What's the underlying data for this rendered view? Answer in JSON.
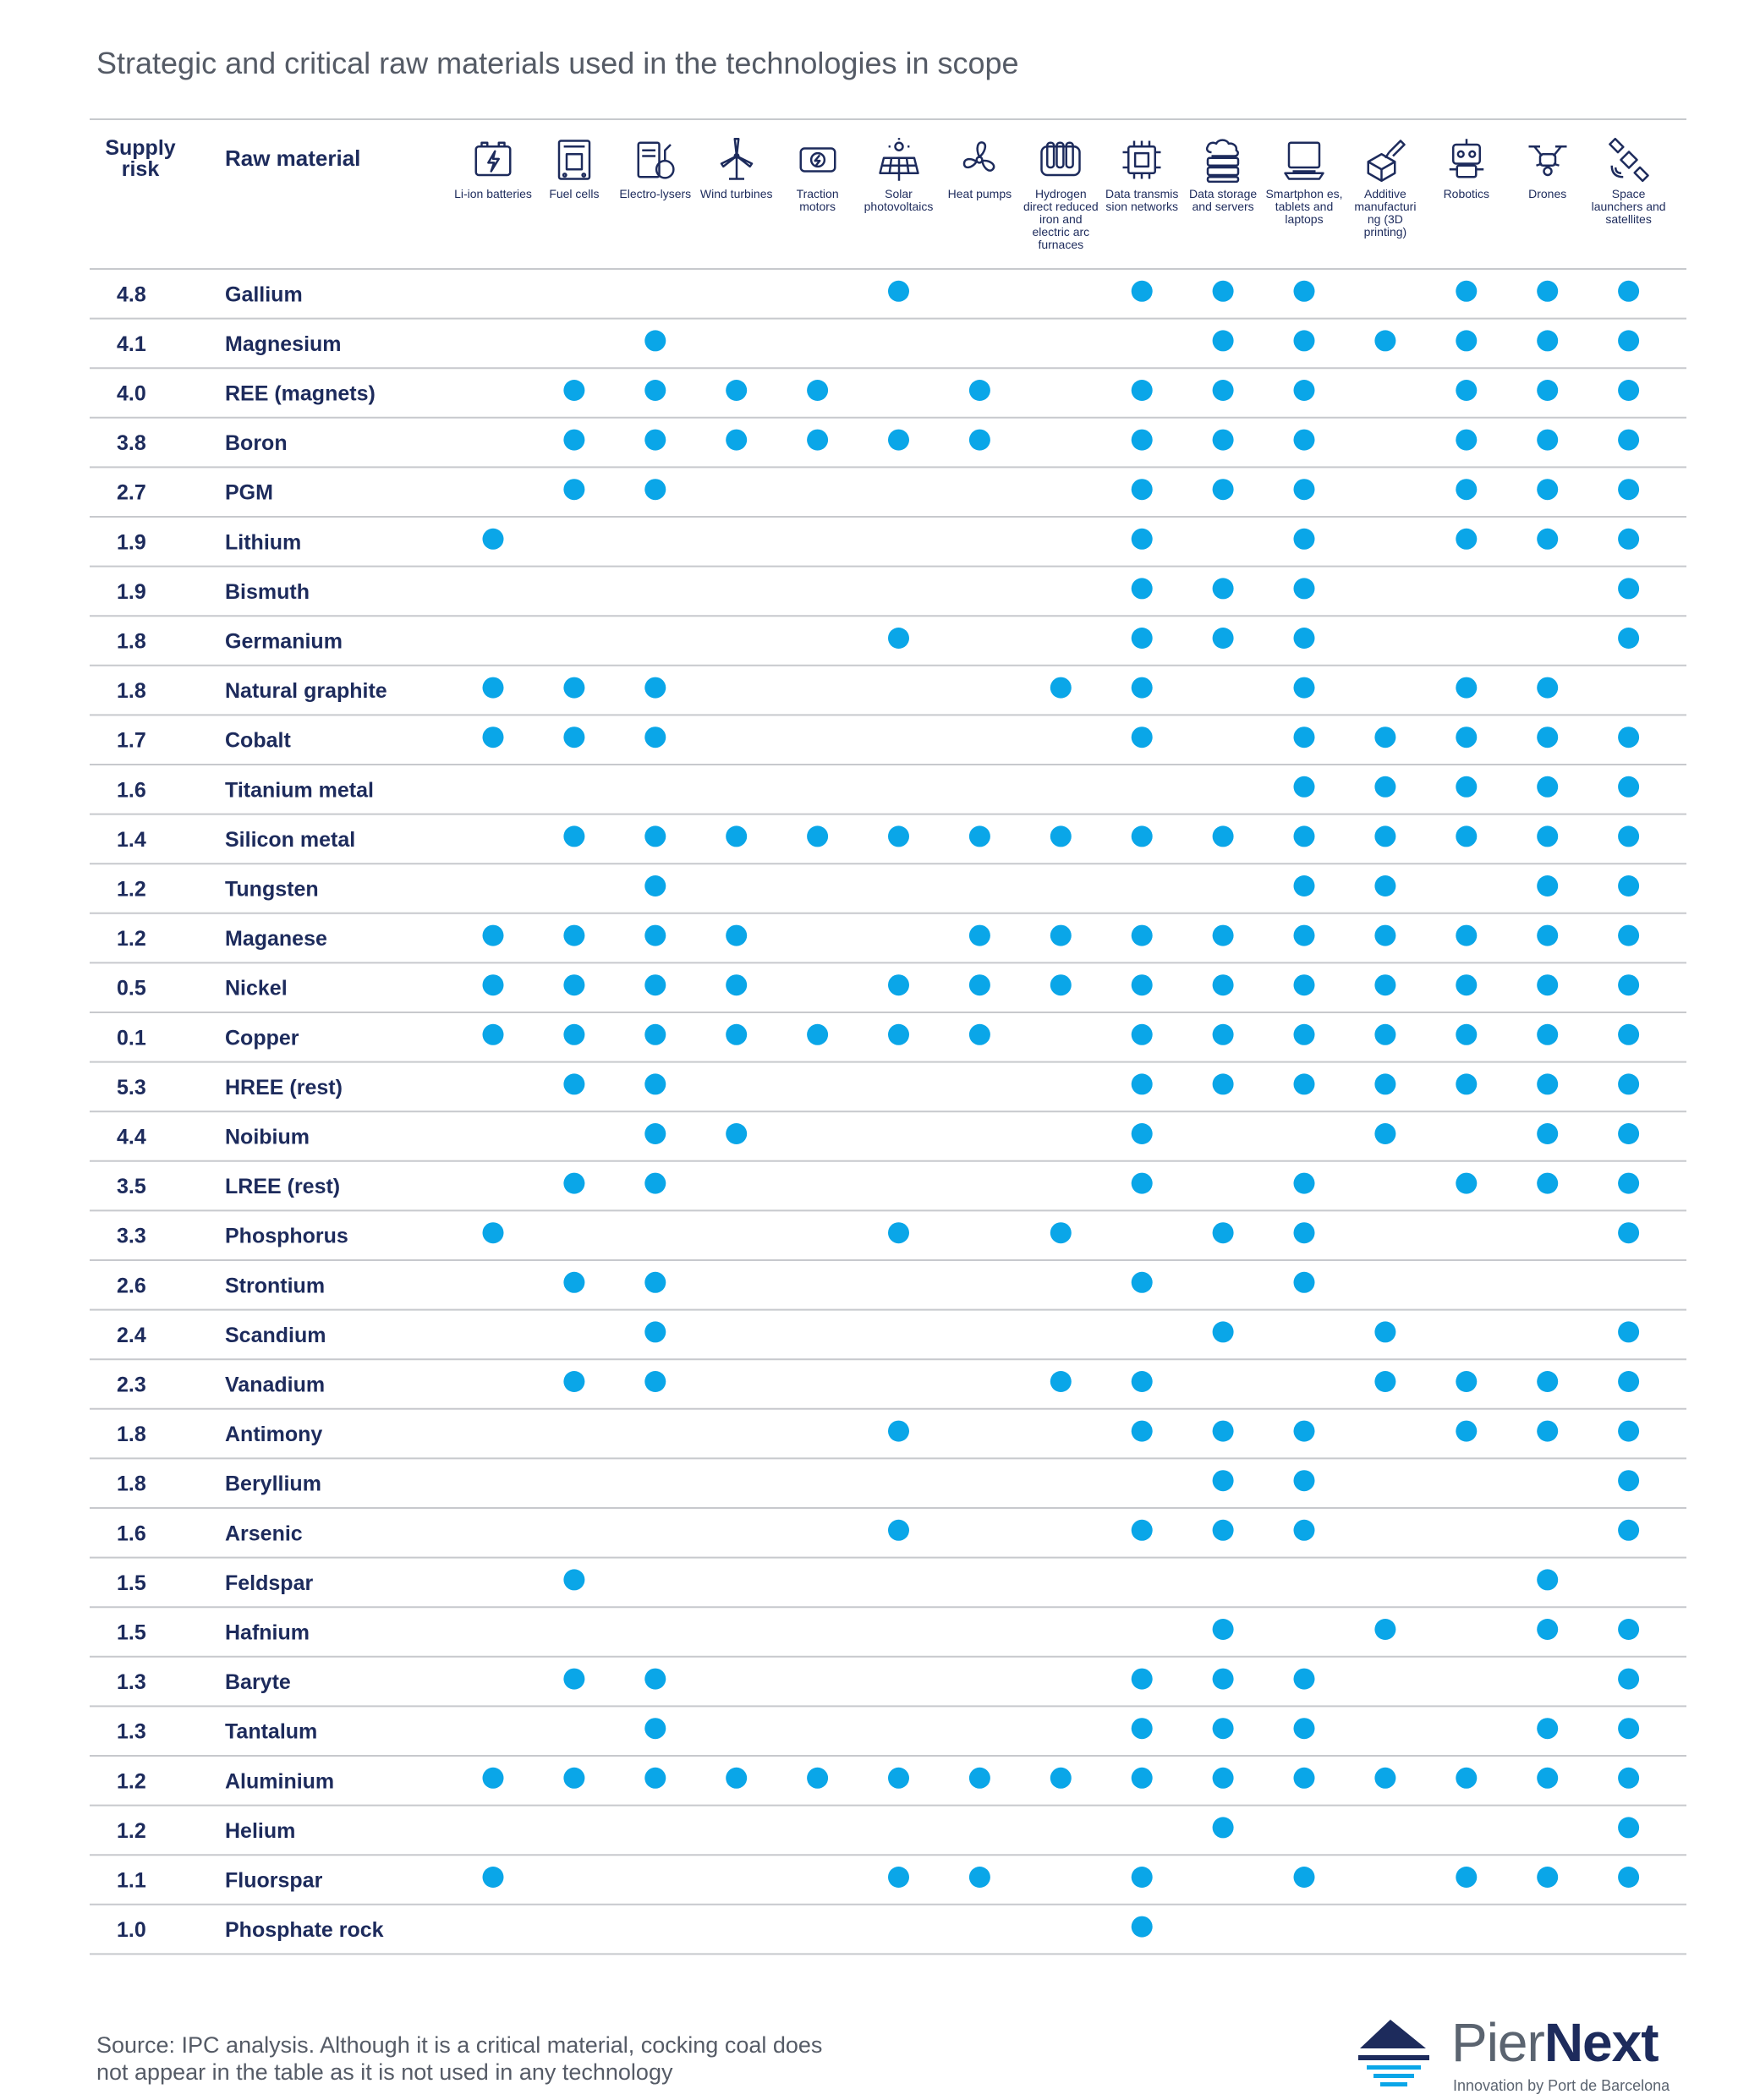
{
  "title": "Strategic and critical raw materials used in the technologies in scope",
  "header": {
    "supply_risk": "Supply risk",
    "raw_material": "Raw material"
  },
  "technologies": [
    {
      "label": "Li-ion batteries",
      "icon": "battery-icon"
    },
    {
      "label": "Fuel cells",
      "icon": "fuel-cell-icon"
    },
    {
      "label": "Electro-lysers",
      "icon": "electrolyser-icon"
    },
    {
      "label": "Wind turbines",
      "icon": "wind-turbine-icon"
    },
    {
      "label": "Traction motors",
      "icon": "traction-motor-icon"
    },
    {
      "label": "Solar photovoltaics",
      "icon": "solar-panel-icon"
    },
    {
      "label": "Heat pumps",
      "icon": "heat-pump-icon"
    },
    {
      "label": "Hydrogen direct reduced iron and electric arc furnaces",
      "icon": "furnace-icon"
    },
    {
      "label": "Data transmis sion networks",
      "icon": "chip-icon"
    },
    {
      "label": "Data storage and servers",
      "icon": "server-icon"
    },
    {
      "label": "Smartphon es, tablets and laptops",
      "icon": "laptop-icon"
    },
    {
      "label": "Additive manufacturi ng (3D printing)",
      "icon": "3d-printer-icon"
    },
    {
      "label": "Robotics",
      "icon": "robot-icon"
    },
    {
      "label": "Drones",
      "icon": "drone-icon"
    },
    {
      "label": "Space launchers and satellites",
      "icon": "satellite-icon"
    }
  ],
  "chart_data": {
    "type": "table",
    "title": "Strategic and critical raw materials used in the technologies in scope",
    "columns": [
      "Li-ion batteries",
      "Fuel cells",
      "Electro-lysers",
      "Wind turbines",
      "Traction motors",
      "Solar photovoltaics",
      "Heat pumps",
      "Hydrogen direct reduced iron and electric arc furnaces",
      "Data transmis sion networks",
      "Data storage and servers",
      "Smartphon es, tablets and laptops",
      "Additive manufacturi ng (3D printing)",
      "Robotics",
      "Drones",
      "Space launchers and satellites"
    ],
    "rows": [
      {
        "risk": "4.8",
        "material": "Gallium",
        "uses": [
          0,
          0,
          0,
          0,
          0,
          1,
          0,
          0,
          1,
          1,
          1,
          0,
          1,
          1,
          1
        ]
      },
      {
        "risk": "4.1",
        "material": "Magnesium",
        "uses": [
          0,
          0,
          1,
          0,
          0,
          0,
          0,
          0,
          0,
          1,
          1,
          1,
          1,
          1,
          1
        ]
      },
      {
        "risk": "4.0",
        "material": "REE (magnets)",
        "uses": [
          0,
          1,
          1,
          1,
          1,
          0,
          1,
          0,
          1,
          1,
          1,
          0,
          1,
          1,
          1
        ]
      },
      {
        "risk": "3.8",
        "material": "Boron",
        "uses": [
          0,
          1,
          1,
          1,
          1,
          1,
          1,
          0,
          1,
          1,
          1,
          0,
          1,
          1,
          1
        ]
      },
      {
        "risk": "2.7",
        "material": "PGM",
        "uses": [
          0,
          1,
          1,
          0,
          0,
          0,
          0,
          0,
          1,
          1,
          1,
          0,
          1,
          1,
          1
        ]
      },
      {
        "risk": "1.9",
        "material": "Lithium",
        "uses": [
          1,
          0,
          0,
          0,
          0,
          0,
          0,
          0,
          1,
          0,
          1,
          0,
          1,
          1,
          1
        ]
      },
      {
        "risk": "1.9",
        "material": "Bismuth",
        "uses": [
          0,
          0,
          0,
          0,
          0,
          0,
          0,
          0,
          1,
          1,
          1,
          0,
          0,
          0,
          1
        ]
      },
      {
        "risk": "1.8",
        "material": "Germanium",
        "uses": [
          0,
          0,
          0,
          0,
          0,
          1,
          0,
          0,
          1,
          1,
          1,
          0,
          0,
          0,
          1
        ]
      },
      {
        "risk": "1.8",
        "material": "Natural graphite",
        "uses": [
          1,
          1,
          1,
          0,
          0,
          0,
          0,
          1,
          1,
          0,
          1,
          0,
          1,
          1,
          0
        ]
      },
      {
        "risk": "1.7",
        "material": "Cobalt",
        "uses": [
          1,
          1,
          1,
          0,
          0,
          0,
          0,
          0,
          1,
          0,
          1,
          1,
          1,
          1,
          1
        ]
      },
      {
        "risk": "1.6",
        "material": "Titanium metal",
        "uses": [
          0,
          0,
          0,
          0,
          0,
          0,
          0,
          0,
          0,
          0,
          1,
          1,
          1,
          1,
          1
        ]
      },
      {
        "risk": "1.4",
        "material": "Silicon metal",
        "uses": [
          0,
          1,
          1,
          1,
          1,
          1,
          1,
          1,
          1,
          1,
          1,
          1,
          1,
          1,
          1
        ]
      },
      {
        "risk": "1.2",
        "material": "Tungsten",
        "uses": [
          0,
          0,
          1,
          0,
          0,
          0,
          0,
          0,
          0,
          0,
          1,
          1,
          0,
          1,
          1
        ]
      },
      {
        "risk": "1.2",
        "material": "Maganese",
        "uses": [
          1,
          1,
          1,
          1,
          0,
          0,
          1,
          1,
          1,
          1,
          1,
          1,
          1,
          1,
          1
        ]
      },
      {
        "risk": "0.5",
        "material": "Nickel",
        "uses": [
          1,
          1,
          1,
          1,
          0,
          1,
          1,
          1,
          1,
          1,
          1,
          1,
          1,
          1,
          1
        ]
      },
      {
        "risk": "0.1",
        "material": "Copper",
        "uses": [
          1,
          1,
          1,
          1,
          1,
          1,
          1,
          0,
          1,
          1,
          1,
          1,
          1,
          1,
          1
        ]
      },
      {
        "risk": "5.3",
        "material": "HREE (rest)",
        "uses": [
          0,
          1,
          1,
          0,
          0,
          0,
          0,
          0,
          1,
          1,
          1,
          1,
          1,
          1,
          1
        ]
      },
      {
        "risk": "4.4",
        "material": "Noibium",
        "uses": [
          0,
          0,
          1,
          1,
          0,
          0,
          0,
          0,
          1,
          0,
          0,
          1,
          0,
          1,
          1
        ]
      },
      {
        "risk": "3.5",
        "material": "LREE (rest)",
        "uses": [
          0,
          1,
          1,
          0,
          0,
          0,
          0,
          0,
          1,
          0,
          1,
          0,
          1,
          1,
          1
        ]
      },
      {
        "risk": "3.3",
        "material": "Phosphorus",
        "uses": [
          1,
          0,
          0,
          0,
          0,
          1,
          0,
          1,
          0,
          1,
          1,
          0,
          0,
          0,
          1
        ]
      },
      {
        "risk": "2.6",
        "material": "Strontium",
        "uses": [
          0,
          1,
          1,
          0,
          0,
          0,
          0,
          0,
          1,
          0,
          1,
          0,
          0,
          0,
          0
        ]
      },
      {
        "risk": "2.4",
        "material": "Scandium",
        "uses": [
          0,
          0,
          1,
          0,
          0,
          0,
          0,
          0,
          0,
          1,
          0,
          1,
          0,
          0,
          1
        ]
      },
      {
        "risk": "2.3",
        "material": "Vanadium",
        "uses": [
          0,
          1,
          1,
          0,
          0,
          0,
          0,
          1,
          1,
          0,
          0,
          1,
          1,
          1,
          1
        ]
      },
      {
        "risk": "1.8",
        "material": "Antimony",
        "uses": [
          0,
          0,
          0,
          0,
          0,
          1,
          0,
          0,
          1,
          1,
          1,
          0,
          1,
          1,
          1
        ]
      },
      {
        "risk": "1.8",
        "material": "Beryllium",
        "uses": [
          0,
          0,
          0,
          0,
          0,
          0,
          0,
          0,
          0,
          1,
          1,
          0,
          0,
          0,
          1
        ]
      },
      {
        "risk": "1.6",
        "material": "Arsenic",
        "uses": [
          0,
          0,
          0,
          0,
          0,
          1,
          0,
          0,
          1,
          1,
          1,
          0,
          0,
          0,
          1
        ]
      },
      {
        "risk": "1.5",
        "material": "Feldspar",
        "uses": [
          0,
          1,
          0,
          0,
          0,
          0,
          0,
          0,
          0,
          0,
          0,
          0,
          0,
          1,
          0
        ]
      },
      {
        "risk": "1.5",
        "material": "Hafnium",
        "uses": [
          0,
          0,
          0,
          0,
          0,
          0,
          0,
          0,
          0,
          1,
          0,
          1,
          0,
          1,
          1
        ]
      },
      {
        "risk": "1.3",
        "material": "Baryte",
        "uses": [
          0,
          1,
          1,
          0,
          0,
          0,
          0,
          0,
          1,
          1,
          1,
          0,
          0,
          0,
          1
        ]
      },
      {
        "risk": "1.3",
        "material": "Tantalum",
        "uses": [
          0,
          0,
          1,
          0,
          0,
          0,
          0,
          0,
          1,
          1,
          1,
          0,
          0,
          1,
          1
        ]
      },
      {
        "risk": "1.2",
        "material": "Aluminium",
        "uses": [
          1,
          1,
          1,
          1,
          1,
          1,
          1,
          1,
          1,
          1,
          1,
          1,
          1,
          1,
          1
        ]
      },
      {
        "risk": "1.2",
        "material": "Helium",
        "uses": [
          0,
          0,
          0,
          0,
          0,
          0,
          0,
          0,
          0,
          1,
          0,
          0,
          0,
          0,
          1
        ]
      },
      {
        "risk": "1.1",
        "material": "Fluorspar",
        "uses": [
          1,
          0,
          0,
          0,
          0,
          1,
          1,
          0,
          1,
          0,
          1,
          0,
          1,
          1,
          1
        ]
      },
      {
        "risk": "1.0",
        "material": "Phosphate rock",
        "uses": [
          0,
          0,
          0,
          0,
          0,
          0,
          0,
          0,
          1,
          0,
          0,
          0,
          0,
          0,
          0
        ]
      }
    ]
  },
  "colors": {
    "dot": "#0aa6e8",
    "text": "#1d2b5c",
    "rule": "#c7c9cd",
    "muted": "#555b66"
  },
  "source_note": "Source: IPC analysis. Although it is a critical material, cocking coal does not appear in the table as it is not used in any technology",
  "logo": {
    "name_part1": "Pier",
    "name_part2": "Next",
    "tagline": "Innovation by Port de Barcelona"
  }
}
